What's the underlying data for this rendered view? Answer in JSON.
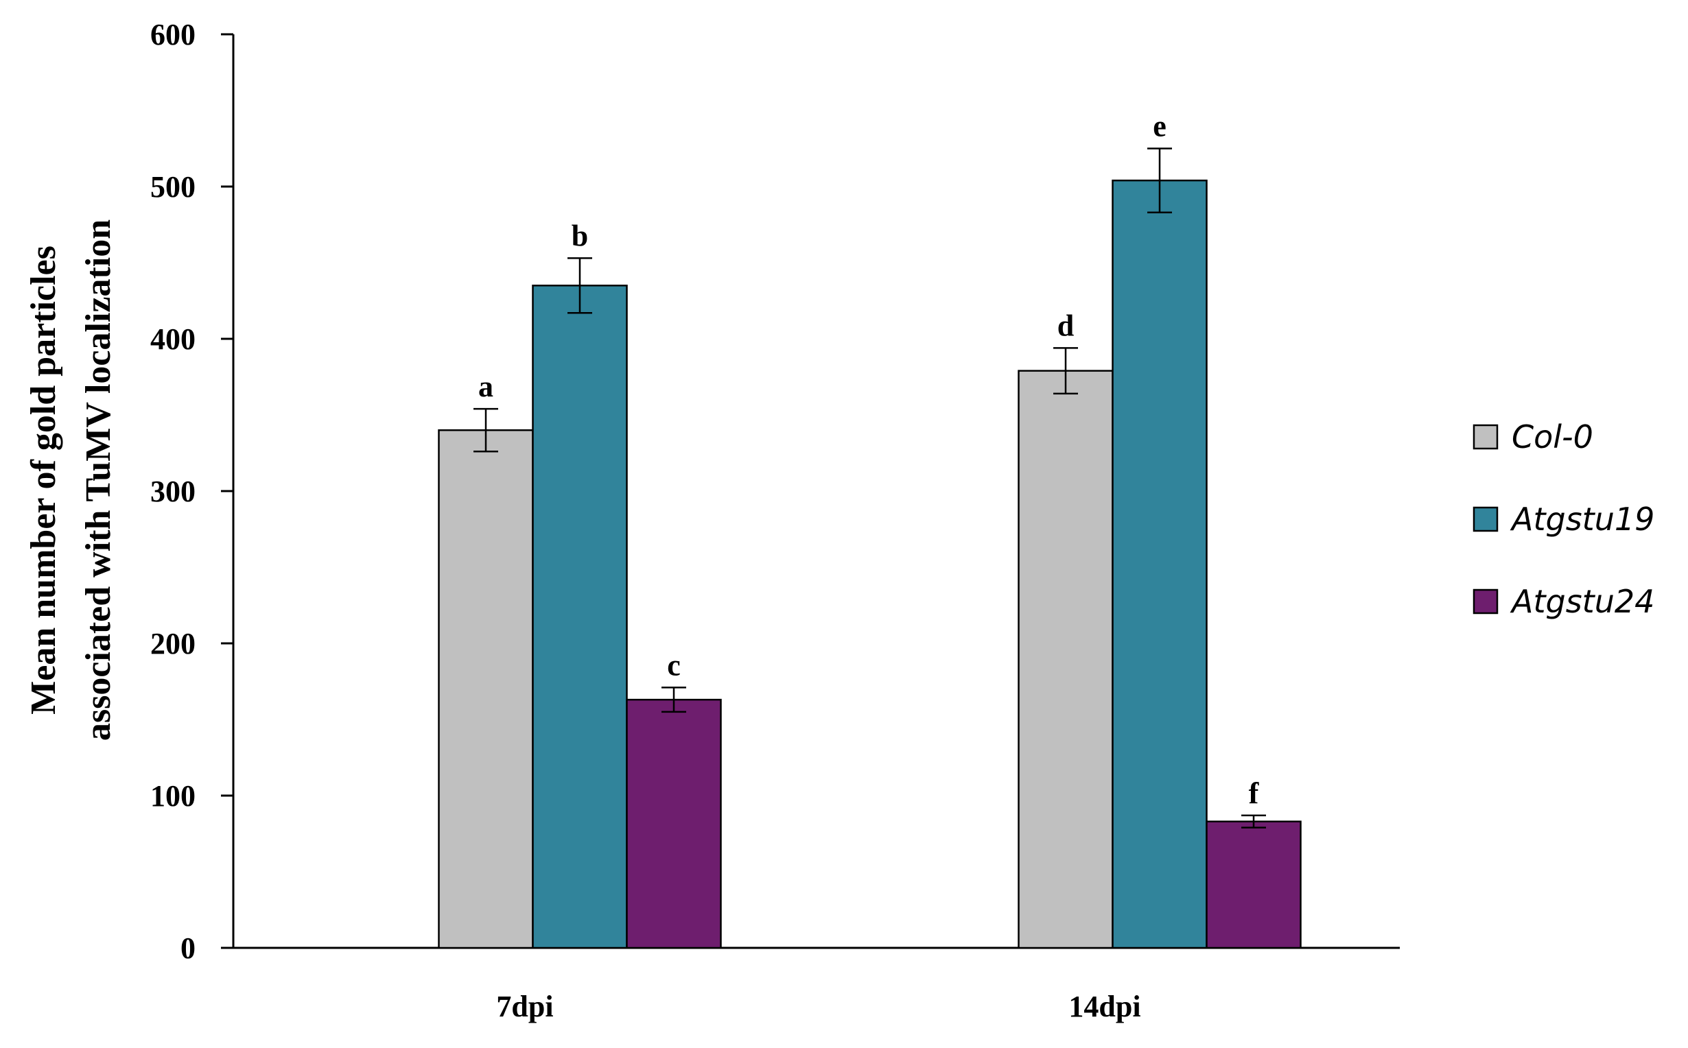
{
  "chart_data": {
    "type": "bar",
    "title": "",
    "xlabel": "",
    "ylabel_lines": [
      "Mean number of gold particles",
      "associated with TuMV localization"
    ],
    "categories": [
      "7dpi",
      "14dpi"
    ],
    "ylim": [
      0,
      600
    ],
    "yticks": [
      0,
      100,
      200,
      300,
      400,
      500,
      600
    ],
    "grid": false,
    "legend_position": "right",
    "series": [
      {
        "name": "Col-0",
        "color": "#c0c0c0",
        "values": [
          340,
          379
        ],
        "errors": [
          14,
          15
        ],
        "letters": [
          "a",
          "d"
        ]
      },
      {
        "name": "Atgstu19",
        "color": "#31849b",
        "values": [
          435,
          504
        ],
        "errors": [
          18,
          21
        ],
        "letters": [
          "b",
          "e"
        ]
      },
      {
        "name": "Atgstu24",
        "color": "#6e1e6e",
        "values": [
          163,
          83
        ],
        "errors": [
          8,
          4
        ],
        "letters": [
          "c",
          "f"
        ]
      }
    ]
  }
}
